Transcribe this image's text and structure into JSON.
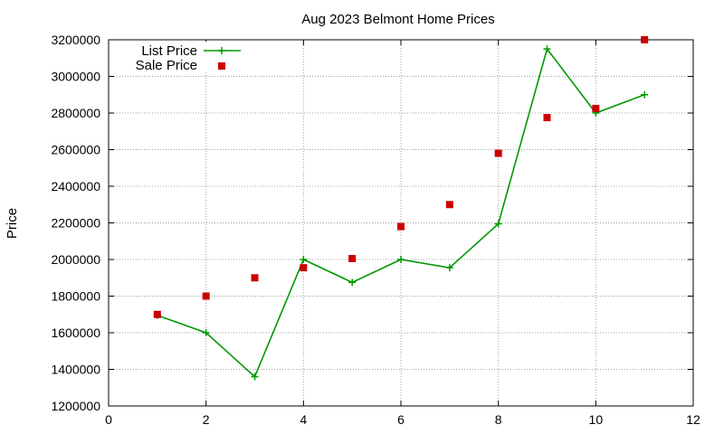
{
  "chart_data": {
    "type": "line",
    "title": "Aug 2023 Belmont Home Prices",
    "xlabel": "",
    "ylabel": "Price",
    "xlim": [
      0,
      12
    ],
    "ylim": [
      1200000,
      3200000
    ],
    "x_ticks": [
      0,
      2,
      4,
      6,
      8,
      10,
      12
    ],
    "y_ticks": [
      1200000,
      1400000,
      1600000,
      1800000,
      2000000,
      2200000,
      2400000,
      2600000,
      2800000,
      3000000,
      3200000
    ],
    "grid": true,
    "legend_position": "top-left",
    "series": [
      {
        "name": "List Price",
        "style": "line-with-plus-markers",
        "color": "#009900",
        "x": [
          1,
          2,
          3,
          4,
          5,
          6,
          7,
          8,
          9,
          10,
          11
        ],
        "values": [
          1695000,
          1600000,
          1360000,
          2000000,
          1875000,
          2000000,
          1955000,
          2195000,
          3150000,
          2800000,
          2900000
        ]
      },
      {
        "name": "Sale Price",
        "style": "square-markers",
        "color": "#cc0000",
        "x": [
          1,
          2,
          3,
          4,
          5,
          6,
          7,
          8,
          9,
          10,
          11
        ],
        "values": [
          1700000,
          1800000,
          1900000,
          1955000,
          2005000,
          2180000,
          2300000,
          2580000,
          2775000,
          2825000,
          3200000
        ]
      }
    ]
  }
}
